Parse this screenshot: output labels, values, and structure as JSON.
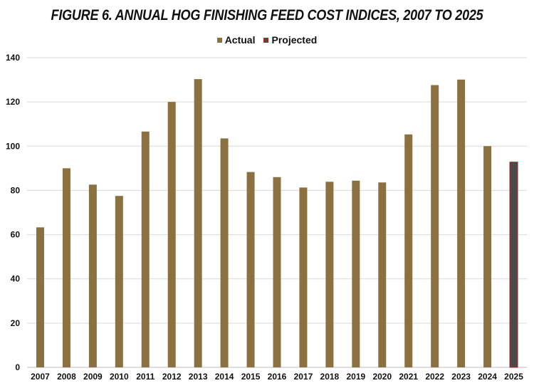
{
  "chart_data": {
    "type": "bar",
    "title": "FIGURE 6.  ANNUAL HOG FINISHING FEED COST INDICES, 2007 TO 2025",
    "categories": [
      "2007",
      "2008",
      "2009",
      "2010",
      "2011",
      "2012",
      "2013",
      "2014",
      "2015",
      "2016",
      "2017",
      "2018",
      "2019",
      "2020",
      "2021",
      "2022",
      "2023",
      "2024",
      "2025"
    ],
    "series": [
      {
        "name": "Actual",
        "color": "#8B7140",
        "values": [
          63.3,
          90,
          82.6,
          77.5,
          106.6,
          120,
          130.3,
          103.5,
          88.3,
          86,
          81.3,
          83.9,
          84.4,
          83.6,
          105.3,
          127.6,
          130.1,
          100,
          null
        ]
      },
      {
        "name": "Projected",
        "color": "#4A4A4A",
        "border_color": "#B22222",
        "values": [
          null,
          null,
          null,
          null,
          null,
          null,
          null,
          null,
          null,
          null,
          null,
          null,
          null,
          null,
          null,
          null,
          null,
          null,
          92.8
        ]
      }
    ],
    "ylim": [
      0,
      140
    ],
    "yticks": [
      0,
      20,
      40,
      60,
      80,
      100,
      120,
      140
    ],
    "xlabel": "",
    "ylabel": "",
    "grid": true,
    "legend_position": "top-center"
  }
}
